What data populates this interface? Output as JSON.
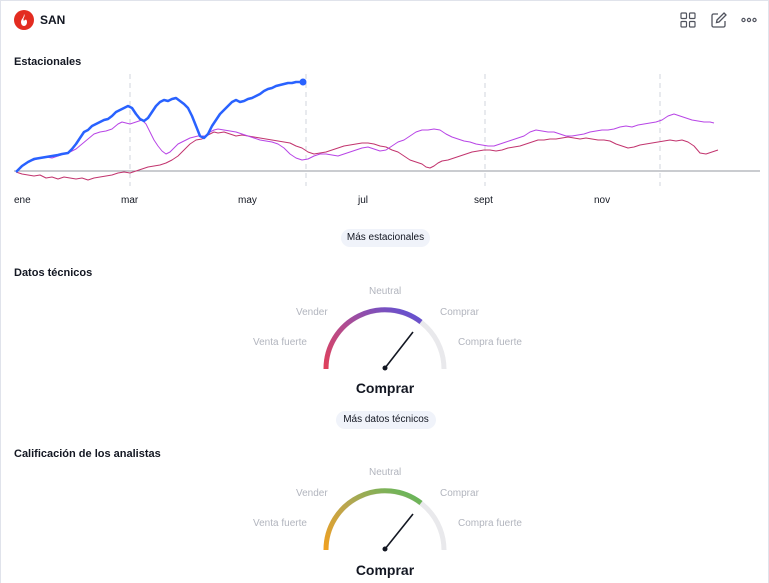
{
  "header": {
    "ticker": "SAN",
    "logo_icon": "santander-flame-icon",
    "buttons": [
      "grid-icon",
      "edit-icon",
      "more-icon"
    ]
  },
  "seasonals": {
    "title": "Estacionales",
    "button_label": "Más estacionales",
    "month_labels": [
      "ene",
      "mar",
      "may",
      "jul",
      "sept",
      "nov"
    ],
    "series_colors": [
      "#2962ff",
      "#b845e6",
      "#c2346e"
    ]
  },
  "technicals": {
    "title": "Datos técnicos",
    "labels": {
      "strong_sell": "Venta fuerte",
      "sell": "Vender",
      "neutral": "Neutral",
      "buy": "Comprar",
      "strong_buy": "Compra fuerte"
    },
    "rating": "Comprar",
    "button_label": "Más datos técnicos"
  },
  "analysts": {
    "title": "Calificación de los analistas",
    "labels": {
      "strong_sell": "Venta fuerte",
      "sell": "Vender",
      "neutral": "Neutral",
      "buy": "Comprar",
      "strong_buy": "Compra fuerte"
    },
    "rating": "Comprar"
  }
}
